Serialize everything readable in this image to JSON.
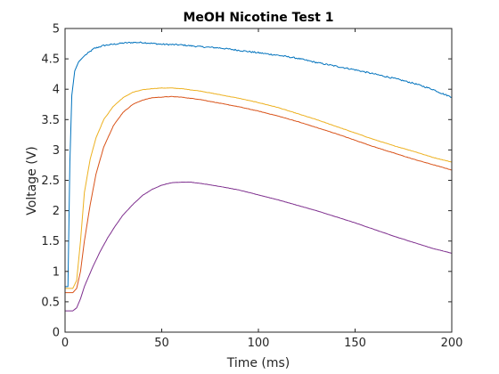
{
  "chart_data": {
    "type": "line",
    "title": "MeOH Nicotine Test 1",
    "xlabel": "Time (ms)",
    "ylabel": "Voltage (V)",
    "xlim": [
      0,
      200
    ],
    "ylim": [
      0,
      5
    ],
    "xticks": [
      0,
      50,
      100,
      150,
      200
    ],
    "yticks": [
      0,
      0.5,
      1,
      1.5,
      2,
      2.5,
      3,
      3.5,
      4,
      4.5,
      5
    ],
    "grid": false,
    "series": [
      {
        "color": "#0072BD",
        "noise": 0.012,
        "points": [
          [
            0,
            0.75
          ],
          [
            1.5,
            0.75
          ],
          [
            2.5,
            2.8
          ],
          [
            3.5,
            3.9
          ],
          [
            5,
            4.3
          ],
          [
            7,
            4.45
          ],
          [
            10,
            4.55
          ],
          [
            15,
            4.67
          ],
          [
            20,
            4.72
          ],
          [
            25,
            4.74
          ],
          [
            30,
            4.76
          ],
          [
            35,
            4.77
          ],
          [
            40,
            4.77
          ],
          [
            50,
            4.74
          ],
          [
            60,
            4.73
          ],
          [
            70,
            4.7
          ],
          [
            80,
            4.68
          ],
          [
            90,
            4.64
          ],
          [
            100,
            4.6
          ],
          [
            110,
            4.56
          ],
          [
            120,
            4.51
          ],
          [
            130,
            4.44
          ],
          [
            140,
            4.38
          ],
          [
            150,
            4.32
          ],
          [
            160,
            4.25
          ],
          [
            170,
            4.18
          ],
          [
            180,
            4.1
          ],
          [
            190,
            4.0
          ],
          [
            195,
            3.93
          ],
          [
            200,
            3.87
          ]
        ]
      },
      {
        "color": "#EDB120",
        "noise": 0.003,
        "points": [
          [
            0,
            0.72
          ],
          [
            4,
            0.72
          ],
          [
            6,
            0.85
          ],
          [
            8,
            1.5
          ],
          [
            10,
            2.3
          ],
          [
            13,
            2.85
          ],
          [
            16,
            3.2
          ],
          [
            20,
            3.5
          ],
          [
            25,
            3.72
          ],
          [
            30,
            3.86
          ],
          [
            35,
            3.95
          ],
          [
            40,
            3.99
          ],
          [
            45,
            4.01
          ],
          [
            50,
            4.02
          ],
          [
            55,
            4.02
          ],
          [
            60,
            4.01
          ],
          [
            70,
            3.97
          ],
          [
            80,
            3.91
          ],
          [
            90,
            3.85
          ],
          [
            100,
            3.78
          ],
          [
            110,
            3.7
          ],
          [
            120,
            3.6
          ],
          [
            130,
            3.5
          ],
          [
            140,
            3.39
          ],
          [
            150,
            3.28
          ],
          [
            160,
            3.17
          ],
          [
            170,
            3.07
          ],
          [
            180,
            2.98
          ],
          [
            190,
            2.88
          ],
          [
            200,
            2.8
          ]
        ]
      },
      {
        "color": "#D95319",
        "noise": 0.003,
        "points": [
          [
            0,
            0.65
          ],
          [
            4,
            0.65
          ],
          [
            6,
            0.72
          ],
          [
            8,
            1.0
          ],
          [
            10,
            1.5
          ],
          [
            13,
            2.1
          ],
          [
            16,
            2.6
          ],
          [
            20,
            3.05
          ],
          [
            25,
            3.4
          ],
          [
            30,
            3.62
          ],
          [
            35,
            3.75
          ],
          [
            40,
            3.82
          ],
          [
            45,
            3.86
          ],
          [
            50,
            3.87
          ],
          [
            55,
            3.88
          ],
          [
            60,
            3.87
          ],
          [
            70,
            3.83
          ],
          [
            80,
            3.77
          ],
          [
            90,
            3.71
          ],
          [
            100,
            3.64
          ],
          [
            110,
            3.56
          ],
          [
            120,
            3.47
          ],
          [
            130,
            3.37
          ],
          [
            140,
            3.27
          ],
          [
            150,
            3.16
          ],
          [
            160,
            3.05
          ],
          [
            170,
            2.95
          ],
          [
            180,
            2.85
          ],
          [
            190,
            2.76
          ],
          [
            200,
            2.67
          ]
        ]
      },
      {
        "color": "#7E2F8E",
        "noise": 0.002,
        "points": [
          [
            0,
            0.35
          ],
          [
            4,
            0.35
          ],
          [
            6,
            0.4
          ],
          [
            8,
            0.55
          ],
          [
            10,
            0.75
          ],
          [
            14,
            1.05
          ],
          [
            18,
            1.32
          ],
          [
            22,
            1.55
          ],
          [
            26,
            1.75
          ],
          [
            30,
            1.93
          ],
          [
            35,
            2.1
          ],
          [
            40,
            2.25
          ],
          [
            45,
            2.35
          ],
          [
            50,
            2.42
          ],
          [
            55,
            2.46
          ],
          [
            60,
            2.47
          ],
          [
            65,
            2.47
          ],
          [
            70,
            2.45
          ],
          [
            80,
            2.4
          ],
          [
            90,
            2.34
          ],
          [
            100,
            2.26
          ],
          [
            110,
            2.18
          ],
          [
            120,
            2.09
          ],
          [
            130,
            2.0
          ],
          [
            140,
            1.9
          ],
          [
            150,
            1.8
          ],
          [
            160,
            1.69
          ],
          [
            170,
            1.58
          ],
          [
            180,
            1.48
          ],
          [
            190,
            1.38
          ],
          [
            200,
            1.3
          ]
        ]
      }
    ]
  }
}
